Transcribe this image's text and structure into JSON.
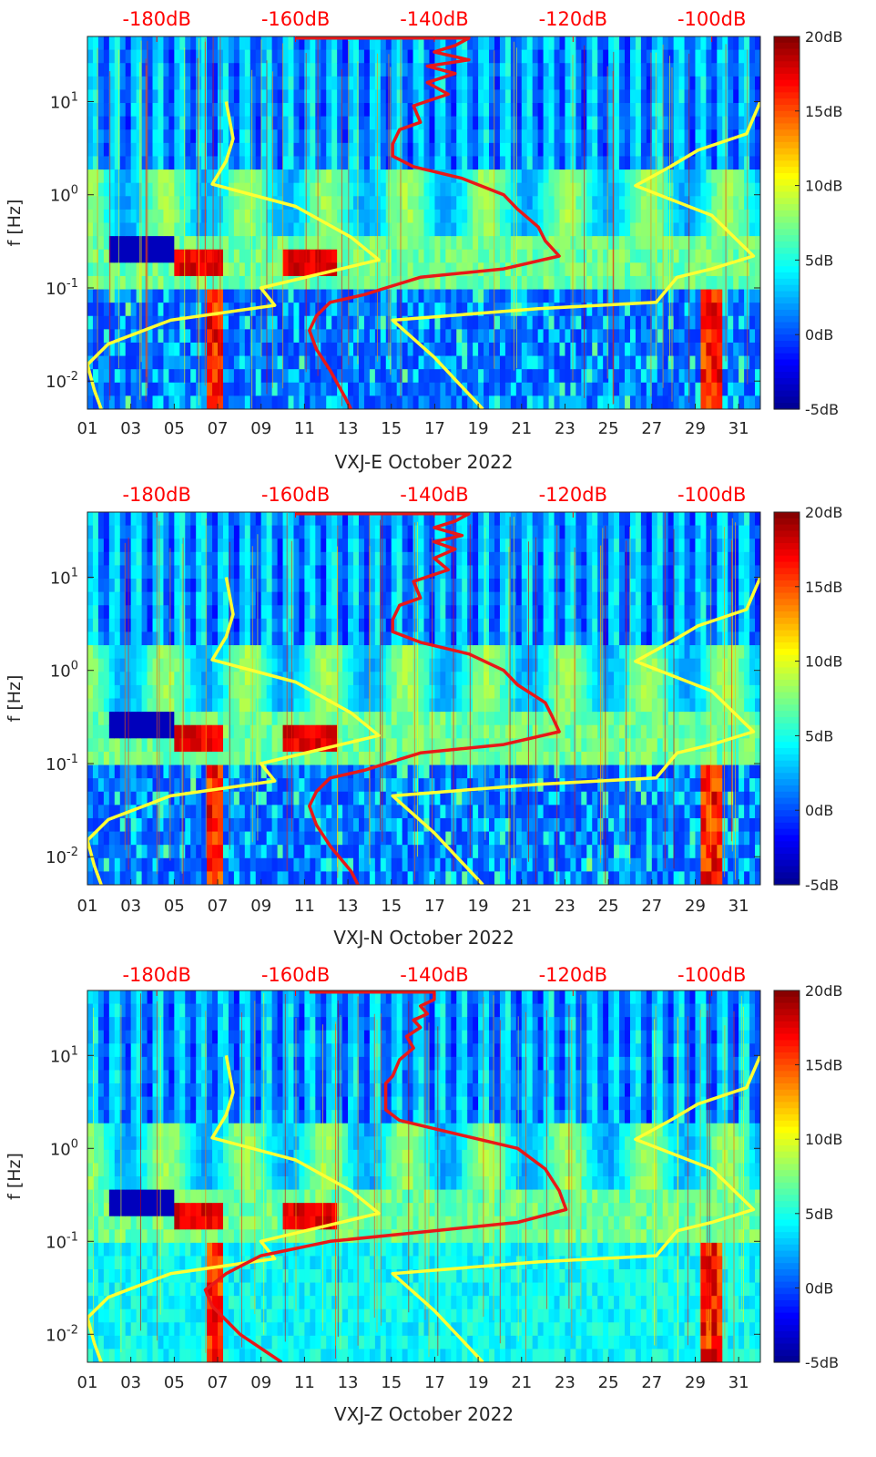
{
  "figure": {
    "month": "October 2022",
    "ylabel": "f [Hz]"
  },
  "colors": {
    "upper_scale": "#ff0000",
    "yellow_curve": "#ffff33",
    "red_curve": "#e81818",
    "colormap": [
      "#00008f",
      "#0000ff",
      "#0080ff",
      "#00ffff",
      "#80ff80",
      "#ffff00",
      "#ff8000",
      "#ff0000",
      "#800000"
    ]
  },
  "chart_data": [
    {
      "type": "heatmap",
      "station": "VXJ-E",
      "xlabel": "VXJ-E October 2022",
      "ylabel": "f [Hz]",
      "x_ticks": [
        "01",
        "03",
        "05",
        "07",
        "09",
        "11",
        "13",
        "15",
        "17",
        "19",
        "21",
        "23",
        "25",
        "27",
        "29",
        "31"
      ],
      "x_range_days": [
        1,
        32
      ],
      "y_ticks": [
        {
          "value": 10,
          "label": "10^1"
        },
        {
          "value": 1,
          "label": "10^0"
        },
        {
          "value": 0.1,
          "label": "10^-1"
        },
        {
          "value": 0.01,
          "label": "10^-2"
        }
      ],
      "y_range_hz": [
        0.005,
        50
      ],
      "top_axis_ticks": [
        "-180dB",
        "-160dB",
        "-140dB",
        "-120dB",
        "-100dB"
      ],
      "top_axis_range_db": [
        -190,
        -93
      ],
      "colorbar": {
        "ticks": [
          "20dB",
          "15dB",
          "10dB",
          "5dB",
          "0dB",
          "-5dB"
        ],
        "range_db": [
          -5,
          20
        ]
      },
      "yellow_curve_left": [
        [
          -170,
          10
        ],
        [
          -169,
          4
        ],
        [
          -170,
          2.3
        ],
        [
          -172,
          1.3
        ],
        [
          -160,
          0.75
        ],
        [
          -152,
          0.35
        ],
        [
          -148,
          0.2
        ],
        [
          -165,
          0.1
        ],
        [
          -163,
          0.065
        ],
        [
          -178,
          0.045
        ],
        [
          -187,
          0.025
        ],
        [
          -190,
          0.015
        ],
        [
          -189,
          0.008
        ],
        [
          -188,
          0.005
        ]
      ],
      "yellow_curve_right": [
        [
          -93,
          10
        ],
        [
          -95,
          4.5
        ],
        [
          -102,
          3
        ],
        [
          -106,
          2
        ],
        [
          -111,
          1.25
        ],
        [
          -100,
          0.6
        ],
        [
          -94,
          0.22
        ],
        [
          -100,
          0.16
        ],
        [
          -105,
          0.13
        ],
        [
          -108,
          0.07
        ],
        [
          -125,
          0.06
        ],
        [
          -146,
          0.045
        ],
        [
          -140,
          0.018
        ],
        [
          -133,
          0.005
        ]
      ],
      "red_curve": [
        [
          -160,
          48
        ],
        [
          -135,
          48
        ],
        [
          -137,
          40
        ],
        [
          -140,
          34
        ],
        [
          -135,
          28
        ],
        [
          -141,
          24
        ],
        [
          -137,
          20
        ],
        [
          -141,
          16
        ],
        [
          -138,
          12
        ],
        [
          -143,
          9
        ],
        [
          -142,
          6
        ],
        [
          -145,
          5
        ],
        [
          -146,
          3.5
        ],
        [
          -146,
          2.6
        ],
        [
          -143,
          2.0
        ],
        [
          -136,
          1.5
        ],
        [
          -130,
          1.0
        ],
        [
          -128,
          0.7
        ],
        [
          -125,
          0.45
        ],
        [
          -124,
          0.32
        ],
        [
          -122,
          0.22
        ],
        [
          -130,
          0.16
        ],
        [
          -142,
          0.13
        ],
        [
          -147,
          0.1
        ],
        [
          -150,
          0.085
        ],
        [
          -155,
          0.07
        ],
        [
          -157,
          0.05
        ],
        [
          -158,
          0.035
        ],
        [
          -157,
          0.022
        ],
        [
          -155,
          0.013
        ],
        [
          -153,
          0.007
        ],
        [
          -152,
          0.005
        ]
      ]
    },
    {
      "type": "heatmap",
      "station": "VXJ-N",
      "xlabel": "VXJ-N October 2022",
      "ylabel": "f [Hz]",
      "x_ticks": [
        "01",
        "03",
        "05",
        "07",
        "09",
        "11",
        "13",
        "15",
        "17",
        "19",
        "21",
        "23",
        "25",
        "27",
        "29",
        "31"
      ],
      "x_range_days": [
        1,
        32
      ],
      "y_ticks": [
        {
          "value": 10,
          "label": "10^1"
        },
        {
          "value": 1,
          "label": "10^0"
        },
        {
          "value": 0.1,
          "label": "10^-1"
        },
        {
          "value": 0.01,
          "label": "10^-2"
        }
      ],
      "y_range_hz": [
        0.005,
        50
      ],
      "top_axis_ticks": [
        "-180dB",
        "-160dB",
        "-140dB",
        "-120dB",
        "-100dB"
      ],
      "top_axis_range_db": [
        -190,
        -93
      ],
      "colorbar": {
        "ticks": [
          "20dB",
          "15dB",
          "10dB",
          "5dB",
          "0dB",
          "-5dB"
        ],
        "range_db": [
          -5,
          20
        ]
      },
      "yellow_curve_left": [
        [
          -170,
          10
        ],
        [
          -169,
          4
        ],
        [
          -170,
          2.3
        ],
        [
          -172,
          1.3
        ],
        [
          -160,
          0.75
        ],
        [
          -152,
          0.35
        ],
        [
          -148,
          0.2
        ],
        [
          -165,
          0.1
        ],
        [
          -163,
          0.065
        ],
        [
          -178,
          0.045
        ],
        [
          -187,
          0.025
        ],
        [
          -190,
          0.015
        ],
        [
          -189,
          0.008
        ],
        [
          -188,
          0.005
        ]
      ],
      "yellow_curve_right": [
        [
          -93,
          10
        ],
        [
          -95,
          4.5
        ],
        [
          -102,
          3
        ],
        [
          -106,
          2
        ],
        [
          -111,
          1.25
        ],
        [
          -100,
          0.6
        ],
        [
          -94,
          0.22
        ],
        [
          -100,
          0.16
        ],
        [
          -105,
          0.13
        ],
        [
          -108,
          0.07
        ],
        [
          -125,
          0.06
        ],
        [
          -146,
          0.045
        ],
        [
          -140,
          0.018
        ],
        [
          -133,
          0.005
        ]
      ],
      "red_curve": [
        [
          -160,
          48
        ],
        [
          -135,
          48
        ],
        [
          -137,
          40
        ],
        [
          -140,
          34
        ],
        [
          -136,
          28
        ],
        [
          -140,
          24
        ],
        [
          -137,
          20
        ],
        [
          -140,
          16
        ],
        [
          -138,
          12
        ],
        [
          -143,
          9
        ],
        [
          -142,
          6
        ],
        [
          -145,
          5
        ],
        [
          -146,
          3.5
        ],
        [
          -146,
          2.6
        ],
        [
          -142,
          2.0
        ],
        [
          -135,
          1.5
        ],
        [
          -130,
          1.0
        ],
        [
          -128,
          0.7
        ],
        [
          -124,
          0.45
        ],
        [
          -123,
          0.32
        ],
        [
          -122,
          0.22
        ],
        [
          -130,
          0.16
        ],
        [
          -142,
          0.13
        ],
        [
          -147,
          0.1
        ],
        [
          -150,
          0.085
        ],
        [
          -155,
          0.07
        ],
        [
          -157,
          0.05
        ],
        [
          -158,
          0.035
        ],
        [
          -157,
          0.022
        ],
        [
          -155,
          0.013
        ],
        [
          -152,
          0.007
        ],
        [
          -151,
          0.005
        ]
      ]
    },
    {
      "type": "heatmap",
      "station": "VXJ-Z",
      "xlabel": "VXJ-Z October 2022",
      "ylabel": "f [Hz]",
      "x_ticks": [
        "01",
        "03",
        "05",
        "07",
        "09",
        "11",
        "13",
        "15",
        "17",
        "19",
        "21",
        "23",
        "25",
        "27",
        "29",
        "31"
      ],
      "x_range_days": [
        1,
        32
      ],
      "y_ticks": [
        {
          "value": 10,
          "label": "10^1"
        },
        {
          "value": 1,
          "label": "10^0"
        },
        {
          "value": 0.1,
          "label": "10^-1"
        },
        {
          "value": 0.01,
          "label": "10^-2"
        }
      ],
      "y_range_hz": [
        0.005,
        50
      ],
      "top_axis_ticks": [
        "-180dB",
        "-160dB",
        "-140dB",
        "-120dB",
        "-100dB"
      ],
      "top_axis_range_db": [
        -190,
        -93
      ],
      "colorbar": {
        "ticks": [
          "20dB",
          "15dB",
          "10dB",
          "5dB",
          "0dB",
          "-5dB"
        ],
        "range_db": [
          -5,
          20
        ]
      },
      "yellow_curve_left": [
        [
          -170,
          10
        ],
        [
          -169,
          4
        ],
        [
          -170,
          2.3
        ],
        [
          -172,
          1.3
        ],
        [
          -160,
          0.75
        ],
        [
          -152,
          0.35
        ],
        [
          -148,
          0.2
        ],
        [
          -165,
          0.1
        ],
        [
          -163,
          0.065
        ],
        [
          -178,
          0.045
        ],
        [
          -187,
          0.025
        ],
        [
          -190,
          0.015
        ],
        [
          -189,
          0.008
        ],
        [
          -188,
          0.005
        ]
      ],
      "yellow_curve_right": [
        [
          -93,
          10
        ],
        [
          -95,
          4.5
        ],
        [
          -102,
          3
        ],
        [
          -106,
          2
        ],
        [
          -111,
          1.25
        ],
        [
          -100,
          0.6
        ],
        [
          -94,
          0.22
        ],
        [
          -100,
          0.16
        ],
        [
          -105,
          0.13
        ],
        [
          -108,
          0.07
        ],
        [
          -125,
          0.06
        ],
        [
          -146,
          0.045
        ],
        [
          -140,
          0.018
        ],
        [
          -133,
          0.005
        ]
      ],
      "red_curve": [
        [
          -158,
          48
        ],
        [
          -140,
          48
        ],
        [
          -140,
          40
        ],
        [
          -142,
          34
        ],
        [
          -141,
          28
        ],
        [
          -143,
          24
        ],
        [
          -142,
          20
        ],
        [
          -144,
          16
        ],
        [
          -143,
          12
        ],
        [
          -145,
          9
        ],
        [
          -146,
          6
        ],
        [
          -147,
          5
        ],
        [
          -147,
          3.5
        ],
        [
          -147,
          2.6
        ],
        [
          -145,
          2.0
        ],
        [
          -138,
          1.5
        ],
        [
          -128,
          1.0
        ],
        [
          -124,
          0.6
        ],
        [
          -122,
          0.35
        ],
        [
          -121,
          0.22
        ],
        [
          -128,
          0.16
        ],
        [
          -140,
          0.13
        ],
        [
          -155,
          0.1
        ],
        [
          -165,
          0.07
        ],
        [
          -170,
          0.045
        ],
        [
          -173,
          0.03
        ],
        [
          -172,
          0.02
        ],
        [
          -168,
          0.01
        ],
        [
          -162,
          0.005
        ]
      ]
    }
  ]
}
